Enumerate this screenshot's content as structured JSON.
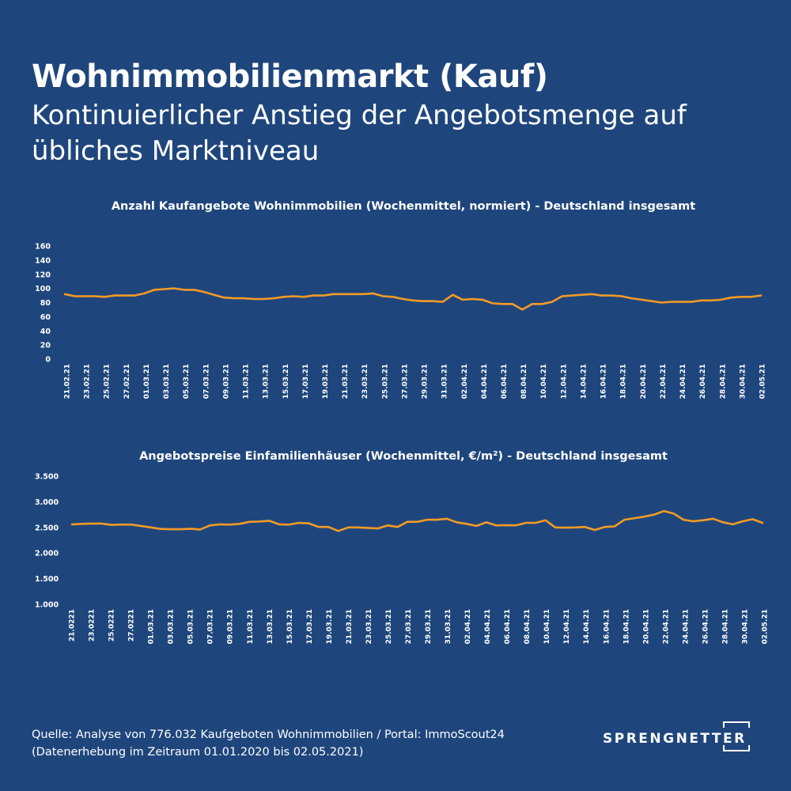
{
  "header": {
    "title": "Wohnimmobilienmarkt (Kauf)",
    "subtitle": "Kontinuierlicher Anstieg der Angebotsmenge auf übliches Marktniveau"
  },
  "colors": {
    "background": "#1f467c",
    "line": "#f39a25",
    "text": "#ffffff"
  },
  "chart_data": [
    {
      "type": "line",
      "title": "Anzahl Kaufangebote Wohnimmobilien (Wochenmittel, normiert) - Deutschland insgesamt",
      "xlabel": "",
      "ylabel": "",
      "ylim": [
        0,
        160
      ],
      "yticks": [
        "0",
        "20",
        "40",
        "60",
        "80",
        "100",
        "120",
        "140",
        "160"
      ],
      "ytick_values": [
        0,
        20,
        40,
        60,
        80,
        100,
        120,
        140,
        160
      ],
      "xtick_labels": [
        "21.02.21",
        "23.02.21",
        "25.02.21",
        "27.02.21",
        "01.03.21",
        "03.03.21",
        "05.03.21",
        "07.03.21",
        "09.03.21",
        "11.03.21",
        "13.03.21",
        "15.03.21",
        "17.03.21",
        "19.03.21",
        "21.03.21",
        "23.03.21",
        "25.03.21",
        "27.03.21",
        "29.03.21",
        "31.03.21",
        "02.04.21",
        "04.04.21",
        "06.04.21",
        "08.04.21",
        "10.04.21",
        "12.04.21",
        "14.04.21",
        "16.04.21",
        "18.04.21",
        "20.04.21",
        "22.04.21",
        "24.04.21",
        "26.04.21",
        "28.04.21",
        "30.04.21",
        "02.05.21"
      ],
      "grid": false,
      "legend": "none",
      "series": [
        {
          "values": [
            92,
            89,
            89,
            89,
            88,
            90,
            90,
            90,
            93,
            98,
            99,
            100,
            98,
            98,
            95,
            91,
            87,
            86,
            86,
            85,
            85,
            86,
            88,
            89,
            88,
            90,
            90,
            92,
            92,
            92,
            92,
            93,
            89,
            88,
            85,
            83,
            82,
            82,
            81,
            91,
            84,
            85,
            84,
            79,
            78,
            78,
            70,
            78,
            78,
            81,
            89,
            90,
            91,
            92,
            90,
            90,
            89,
            86,
            84,
            82,
            80,
            81,
            81,
            81,
            83,
            83,
            84,
            87,
            88,
            88,
            90
          ]
        }
      ]
    },
    {
      "type": "line",
      "title": "Angebotspreise Einfamilienhäuser (Wochenmittel, €/m²) - Deutschland insgesamt",
      "xlabel": "",
      "ylabel": "",
      "ylim": [
        1000,
        3500
      ],
      "yticks": [
        "1.000",
        "1.500",
        "2.000",
        "2.500",
        "3.000",
        "3.500"
      ],
      "ytick_values": [
        1000,
        1500,
        2000,
        2500,
        3000,
        3500
      ],
      "xtick_labels": [
        "21.0221",
        "23.0221",
        "25.0221",
        "27.0221",
        "01.03.21",
        "03.03.21",
        "05.03.21",
        "07.03.21",
        "09.03.21",
        "11.03.21",
        "13.03.21",
        "15.03.21",
        "17.03.21",
        "19.03.21",
        "21.03.21",
        "23.03.21",
        "25.03.21",
        "27.03.21",
        "29.03.21",
        "31.03.21",
        "02.04.21",
        "04.04.21",
        "06.04.21",
        "08.04.21",
        "10.04.21",
        "12.04.21",
        "14.04.21",
        "16.04.21",
        "18.04.21",
        "20.04.21",
        "22.04.21",
        "24.04.21",
        "26.04.21",
        "28.04.21",
        "30.04.21",
        "02.05.21"
      ],
      "grid": false,
      "legend": "none",
      "series": [
        {
          "values": [
            2560,
            2570,
            2575,
            2575,
            2550,
            2555,
            2555,
            2530,
            2500,
            2470,
            2465,
            2465,
            2475,
            2460,
            2540,
            2560,
            2555,
            2570,
            2610,
            2615,
            2630,
            2560,
            2555,
            2590,
            2580,
            2510,
            2510,
            2430,
            2500,
            2500,
            2490,
            2480,
            2540,
            2510,
            2610,
            2610,
            2650,
            2650,
            2670,
            2600,
            2570,
            2530,
            2600,
            2540,
            2545,
            2540,
            2590,
            2590,
            2640,
            2500,
            2495,
            2500,
            2510,
            2450,
            2510,
            2520,
            2650,
            2680,
            2710,
            2750,
            2820,
            2770,
            2650,
            2620,
            2640,
            2670,
            2600,
            2560,
            2620,
            2660,
            2590
          ]
        }
      ]
    }
  ],
  "footer": {
    "source_line1": "Quelle: Analyse von 776.032 Kaufgeboten Wohnimmobilien / Portal: ImmoScout24",
    "source_line2": "(Datenerhebung im Zeitraum 01.01.2020 bis  02.05.2021)",
    "logo_text": "SPRENGNETTER"
  }
}
